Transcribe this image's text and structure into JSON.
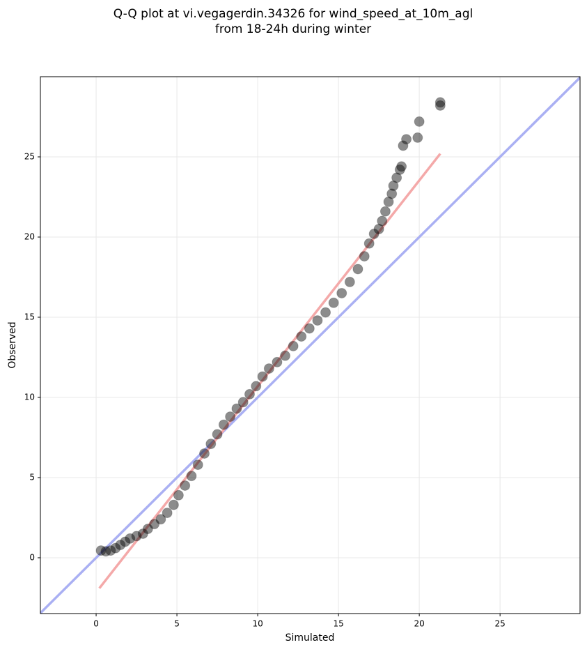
{
  "chart_data": {
    "type": "scatter",
    "title": [
      "Q-Q plot at vi.vegagerdin.34326 for wind_speed_at_10m_agl",
      "from 18-24h during winter"
    ],
    "xlabel": "Simulated",
    "ylabel": "Observed",
    "xlim": [
      -3.45,
      29.95
    ],
    "ylim": [
      -3.48,
      30.0
    ],
    "xticks": [
      0,
      5,
      10,
      15,
      20,
      25
    ],
    "yticks": [
      0,
      5,
      10,
      15,
      20,
      25
    ],
    "grid": true,
    "x": [
      0.3,
      0.6,
      0.9,
      1.2,
      1.5,
      1.8,
      2.1,
      2.5,
      2.9,
      3.2,
      3.6,
      4.0,
      4.4,
      4.8,
      5.1,
      5.5,
      5.9,
      6.3,
      6.7,
      7.1,
      7.5,
      7.9,
      8.3,
      8.7,
      9.1,
      9.5,
      9.9,
      10.3,
      10.7,
      11.2,
      11.7,
      12.2,
      12.7,
      13.2,
      13.7,
      14.2,
      14.7,
      15.2,
      15.7,
      16.2,
      16.6,
      16.9,
      17.2,
      17.5,
      17.7,
      17.9,
      18.1,
      18.3,
      18.4,
      18.6,
      18.8,
      18.9,
      19.0,
      19.2,
      19.9,
      20.0,
      21.3,
      21.3
    ],
    "values": [
      0.45,
      0.4,
      0.45,
      0.6,
      0.8,
      1.0,
      1.2,
      1.35,
      1.5,
      1.8,
      2.1,
      2.4,
      2.8,
      3.3,
      3.9,
      4.5,
      5.1,
      5.8,
      6.5,
      7.1,
      7.7,
      8.3,
      8.8,
      9.3,
      9.7,
      10.2,
      10.7,
      11.3,
      11.8,
      12.2,
      12.6,
      13.2,
      13.8,
      14.3,
      14.8,
      15.3,
      15.9,
      16.5,
      17.2,
      18.0,
      18.8,
      19.6,
      20.2,
      20.5,
      21.0,
      21.6,
      22.2,
      22.7,
      23.2,
      23.7,
      24.2,
      24.4,
      25.7,
      26.1,
      26.2,
      27.2,
      28.2,
      28.4
    ],
    "color": "#000000",
    "reference_line": {
      "x": [
        -3.45,
        29.95
      ],
      "values": [
        -3.45,
        29.95
      ],
      "color": "#aab0f3"
    },
    "fit_line": {
      "x": [
        0.2,
        21.3
      ],
      "values": [
        -1.9,
        25.2
      ],
      "color": "#f4a9a9"
    }
  }
}
